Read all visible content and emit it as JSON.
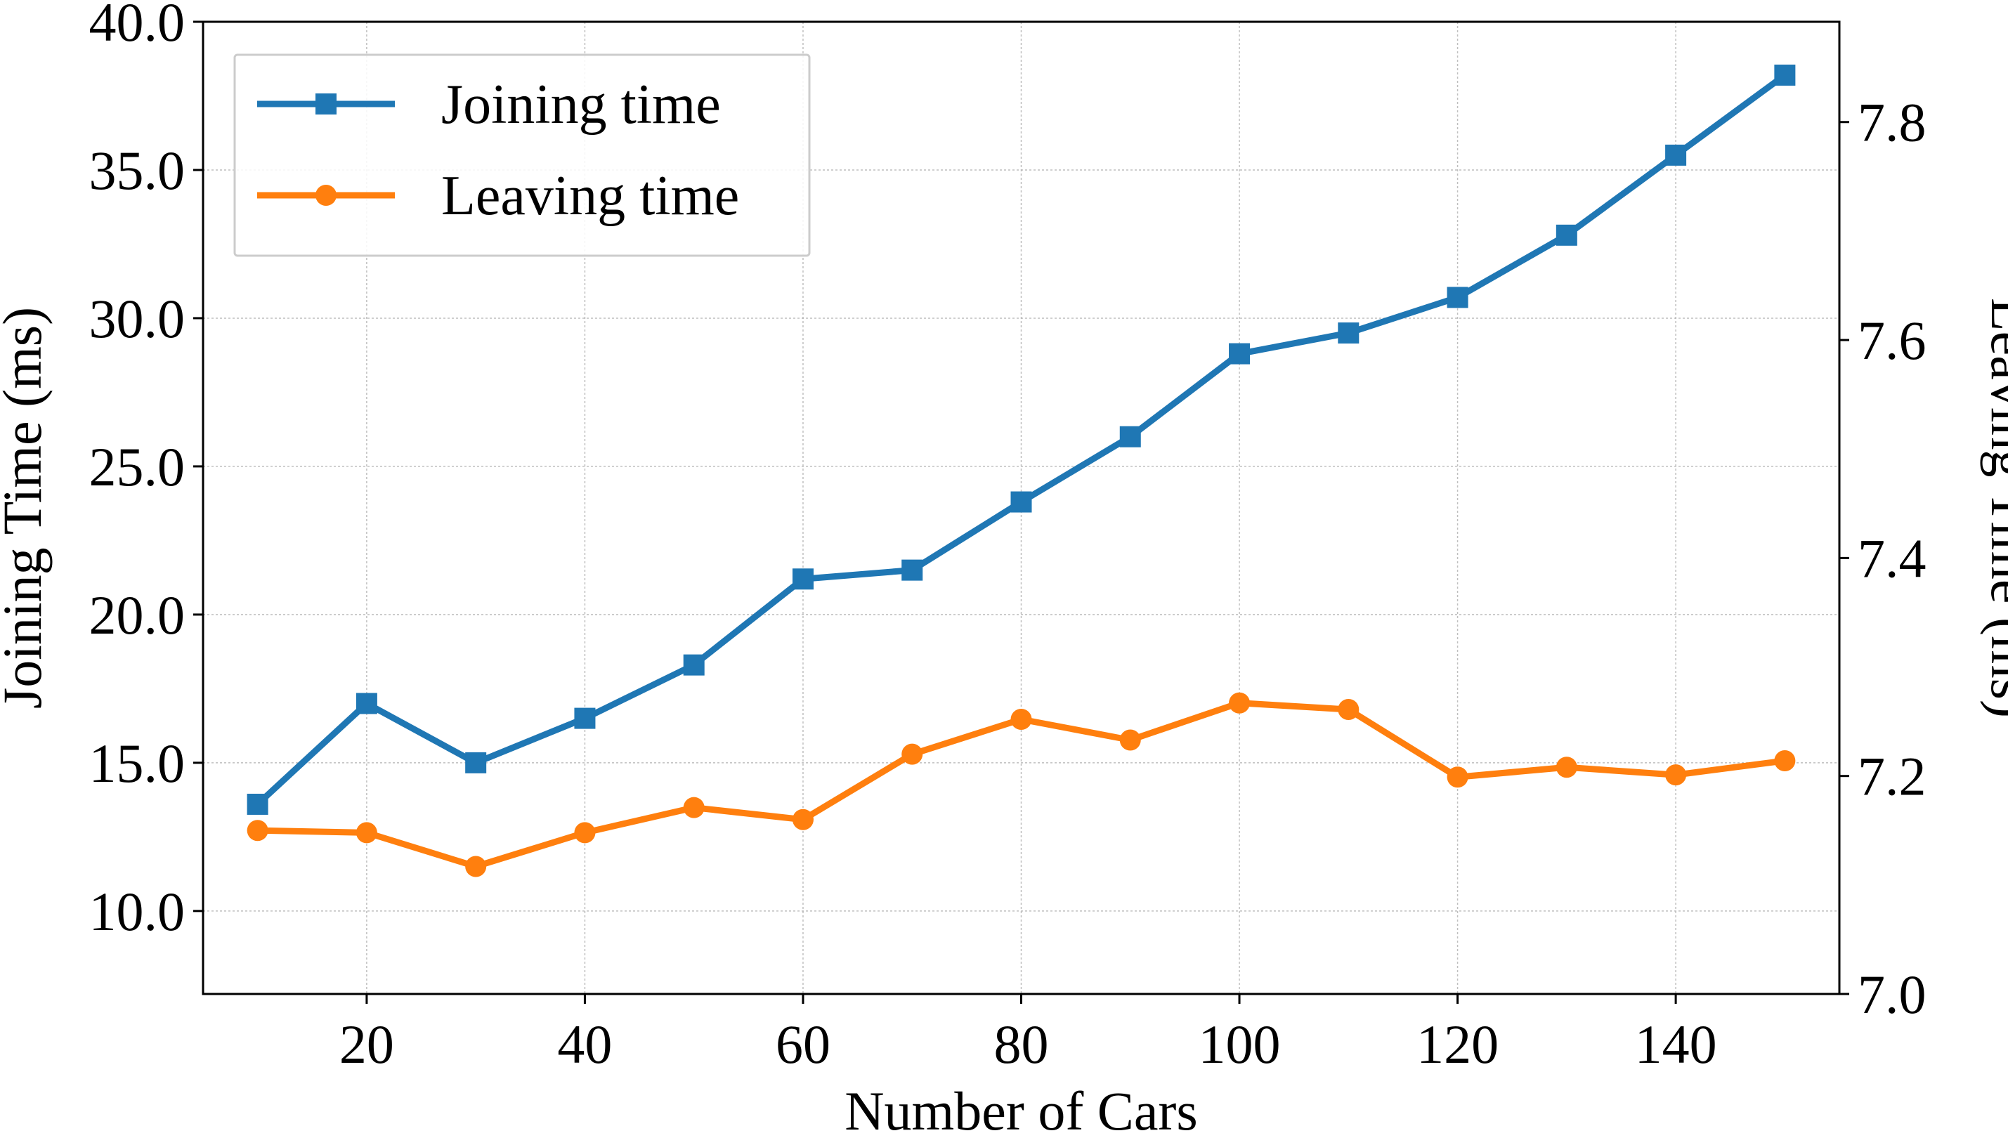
{
  "chart_data": {
    "type": "line",
    "x": [
      10,
      20,
      30,
      40,
      50,
      60,
      70,
      80,
      90,
      100,
      110,
      120,
      130,
      140,
      150
    ],
    "xlabel": "Number of Cars",
    "xlim": [
      5,
      155
    ],
    "xticks": [
      "20",
      "40",
      "60",
      "80",
      "100",
      "120",
      "140"
    ],
    "ylabel_left": "Joining Time (ms)",
    "ylim_left": [
      7.2,
      40.0
    ],
    "yticks_left": [
      "10.0",
      "15.0",
      "20.0",
      "25.0",
      "30.0",
      "35.0",
      "40.0"
    ],
    "ylabel_right": "Leaving Time (ms)",
    "ylim_right": [
      7.0,
      7.892
    ],
    "yticks_right": [
      "7.0",
      "7.2",
      "7.4",
      "7.6",
      "7.8"
    ],
    "grid": true,
    "legend_position": "top-left",
    "series": [
      {
        "name": "Joining time",
        "axis": "left",
        "marker": "square",
        "color": "#1f77b4",
        "values": [
          13.6,
          17.0,
          15.0,
          16.5,
          18.3,
          21.2,
          21.5,
          23.8,
          26.0,
          28.8,
          29.5,
          30.7,
          32.8,
          35.5,
          38.2
        ]
      },
      {
        "name": "Leaving time",
        "axis": "right",
        "marker": "circle",
        "color": "#ff7f0e",
        "values": [
          7.15,
          7.148,
          7.117,
          7.148,
          7.171,
          7.16,
          7.22,
          7.252,
          7.233,
          7.267,
          7.261,
          7.199,
          7.208,
          7.201,
          7.214
        ]
      }
    ]
  }
}
